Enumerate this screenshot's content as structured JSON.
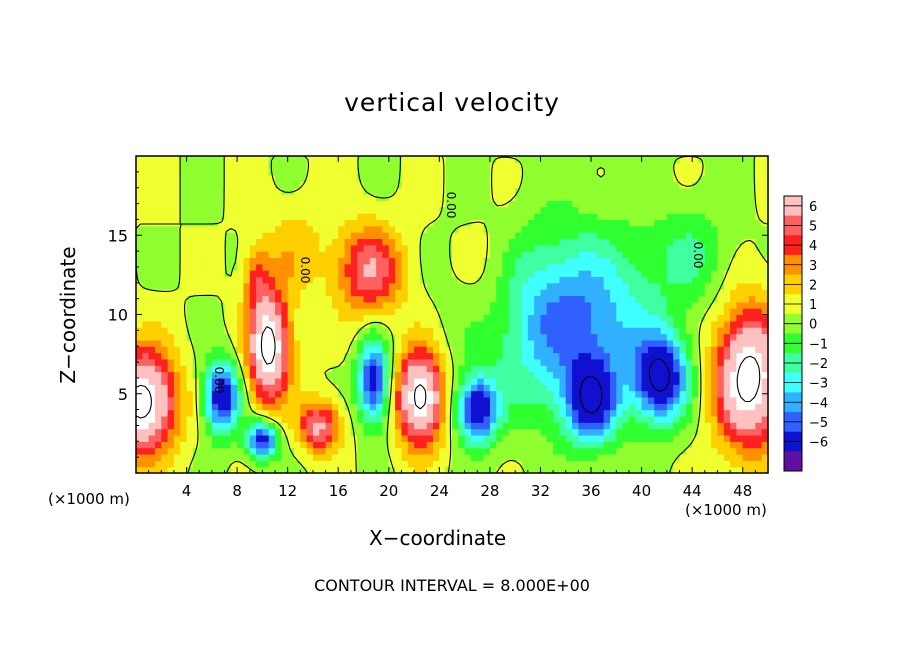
{
  "chart_data": {
    "type": "heatmap",
    "title": "vertical velocity",
    "xlabel": "X−coordinate",
    "ylabel": "Z−coordinate",
    "x_unit": "(×1000 m)",
    "y_unit": "(×1000 m)",
    "x_ticks": [
      4,
      8,
      12,
      16,
      20,
      24,
      28,
      32,
      36,
      40,
      44,
      48
    ],
    "y_ticks": [
      5,
      10,
      15
    ],
    "xlim": [
      0,
      50
    ],
    "ylim": [
      0,
      20
    ],
    "colorbar": {
      "ticks": [
        6,
        5,
        4,
        3,
        2,
        1,
        0,
        -1,
        -2,
        -3,
        -4,
        -5,
        -6
      ],
      "tick_labels": [
        "6",
        "5",
        "4",
        "3",
        "2",
        "1",
        "0",
        "−1",
        "−2",
        "−3",
        "−4",
        "−5",
        "−6"
      ],
      "colors": [
        "#ffc0c0",
        "#ff6060",
        "#ff2020",
        "#ff9000",
        "#ffd000",
        "#f0ff30",
        "#90ff30",
        "#30ff30",
        "#40ffa0",
        "#40ffff",
        "#30b0ff",
        "#3060ff",
        "#1010d0",
        "#6010a0"
      ],
      "range": [
        -6,
        6
      ]
    },
    "contour_labels": [
      "0.00",
      "0.00",
      "0.00",
      "0.00"
    ],
    "contour_interval": "CONTOUR INTERVAL = 8.000E+00",
    "features": [
      {
        "x": 0.5,
        "z": 4.5,
        "sign": 1,
        "peak": 9,
        "sx": 2.6,
        "sz": 3.2
      },
      {
        "x": 6.8,
        "z": 4.8,
        "sign": -1,
        "peak": 7.5,
        "sx": 1.4,
        "sz": 2.2
      },
      {
        "x": 10.5,
        "z": 8.0,
        "sign": 1,
        "peak": 9,
        "sx": 1.6,
        "sz": 3.4
      },
      {
        "x": 10.0,
        "z": 2.1,
        "sign": -1,
        "peak": 7,
        "sx": 1.2,
        "sz": 1.2
      },
      {
        "x": 14.5,
        "z": 3.0,
        "sign": 1,
        "peak": 5.5,
        "sx": 1.6,
        "sz": 1.6
      },
      {
        "x": 18.8,
        "z": 5.8,
        "sign": -1,
        "peak": 7,
        "sx": 1.2,
        "sz": 2.6
      },
      {
        "x": 18.5,
        "z": 12.8,
        "sign": 1,
        "peak": 5,
        "sx": 2.6,
        "sz": 2.8
      },
      {
        "x": 22.5,
        "z": 4.8,
        "sign": 1,
        "peak": 9,
        "sx": 1.8,
        "sz": 2.9
      },
      {
        "x": 27.0,
        "z": 4.0,
        "sign": -1,
        "peak": 7.5,
        "sx": 1.6,
        "sz": 2.0
      },
      {
        "x": 34.5,
        "z": 9.5,
        "sign": -1,
        "peak": 5.5,
        "sx": 6.5,
        "sz": 5.5
      },
      {
        "x": 36.0,
        "z": 4.5,
        "sign": -1,
        "peak": 6.5,
        "sx": 2.0,
        "sz": 2.5
      },
      {
        "x": 41.5,
        "z": 6.0,
        "sign": -1,
        "peak": 8,
        "sx": 2.0,
        "sz": 2.6
      },
      {
        "x": 48.5,
        "z": 6.0,
        "sign": 1,
        "peak": 9,
        "sx": 2.6,
        "sz": 4.2
      },
      {
        "x": 12.5,
        "z": 14.0,
        "sign": 1,
        "peak": 1.6,
        "sx": 2.5,
        "sz": 3.0
      },
      {
        "x": 9.5,
        "z": 12.5,
        "sign": 1,
        "peak": 2.5,
        "sx": 1.0,
        "sz": 2.0
      },
      {
        "x": 44.0,
        "z": 14.0,
        "sign": -1,
        "peak": 1.8,
        "sx": 3.0,
        "sz": 3.0
      },
      {
        "x": 28.0,
        "z": 12.0,
        "sign": 1,
        "peak": 1.2,
        "sx": 2.5,
        "sz": 4.0
      }
    ]
  }
}
